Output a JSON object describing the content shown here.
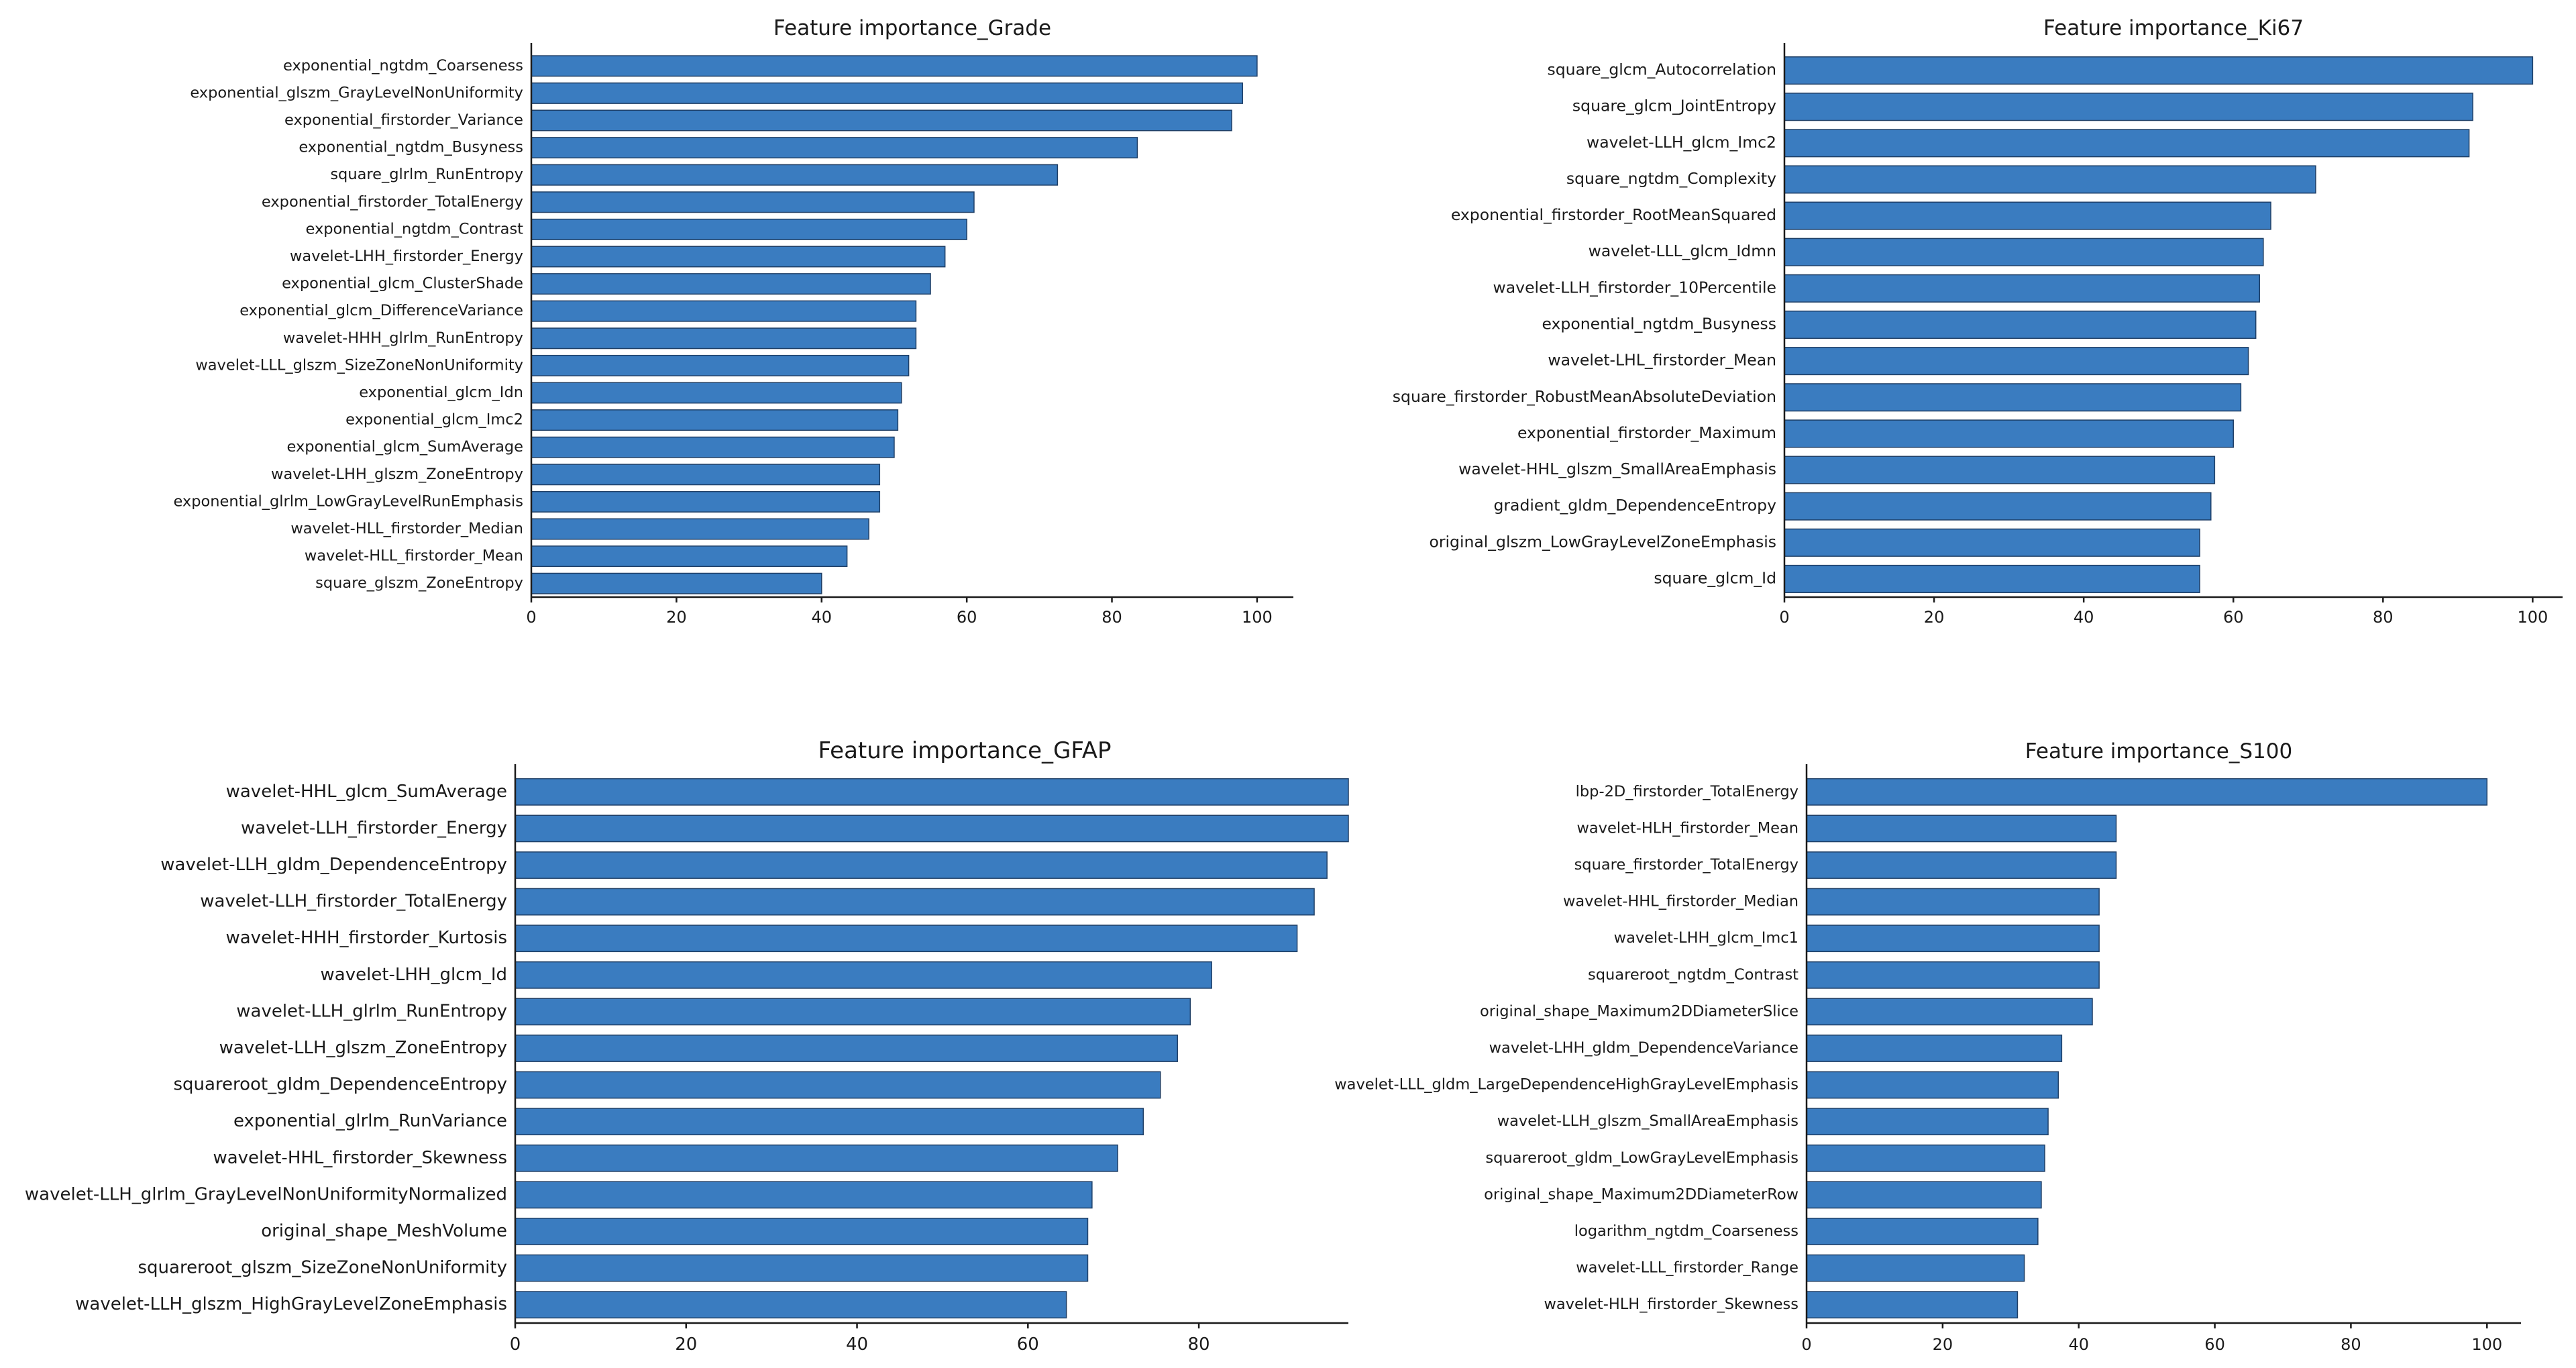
{
  "colors": {
    "bar": "#3a7cc0",
    "bar_edge": "#1f3f66",
    "axis": "#1a1a1a",
    "background": "#ffffff"
  },
  "chart_data": [
    {
      "type": "bar",
      "orientation": "horizontal",
      "title": "Feature importance_Grade",
      "xlim": [
        0,
        105
      ],
      "xticks": [
        0,
        20,
        40,
        60,
        80,
        100
      ],
      "categories": [
        "exponential_ngtdm_Coarseness",
        "exponential_glszm_GrayLevelNonUniformity",
        "exponential_firstorder_Variance",
        "exponential_ngtdm_Busyness",
        "square_glrlm_RunEntropy",
        "exponential_firstorder_TotalEnergy",
        "exponential_ngtdm_Contrast",
        "wavelet-LHH_firstorder_Energy",
        "exponential_glcm_ClusterShade",
        "exponential_glcm_DifferenceVariance",
        "wavelet-HHH_glrlm_RunEntropy",
        "wavelet-LLL_glszm_SizeZoneNonUniformity",
        "exponential_glcm_Idn",
        "exponential_glcm_Imc2",
        "exponential_glcm_SumAverage",
        "wavelet-LHH_glszm_ZoneEntropy",
        "exponential_glrlm_LowGrayLevelRunEmphasis",
        "wavelet-HLL_firstorder_Median",
        "wavelet-HLL_firstorder_Mean",
        "square_glszm_ZoneEntropy"
      ],
      "values": [
        100,
        98,
        96.5,
        83.5,
        72.5,
        61,
        60,
        57,
        55,
        53,
        53,
        52,
        51,
        50.5,
        50,
        48,
        48,
        46.5,
        43.5,
        40
      ]
    },
    {
      "type": "bar",
      "orientation": "horizontal",
      "title": "Feature importance_Ki67",
      "xlim": [
        0,
        104
      ],
      "xticks": [
        0,
        20,
        40,
        60,
        80,
        100
      ],
      "categories": [
        "square_glcm_Autocorrelation",
        "square_glcm_JointEntropy",
        "wavelet-LLH_glcm_Imc2",
        "square_ngtdm_Complexity",
        "exponential_firstorder_RootMeanSquared",
        "wavelet-LLL_glcm_Idmn",
        "wavelet-LLH_firstorder_10Percentile",
        "exponential_ngtdm_Busyness",
        "wavelet-LHL_firstorder_Mean",
        "square_firstorder_RobustMeanAbsoluteDeviation",
        "exponential_firstorder_Maximum",
        "wavelet-HHL_glszm_SmallAreaEmphasis",
        "gradient_gldm_DependenceEntropy",
        "original_glszm_LowGrayLevelZoneEmphasis",
        "square_glcm_Id"
      ],
      "values": [
        100,
        92,
        91.5,
        71,
        65,
        64,
        63.5,
        63,
        62,
        61,
        60,
        57.5,
        57,
        55.5,
        55.5
      ]
    },
    {
      "type": "bar",
      "orientation": "horizontal",
      "title": "Feature importance_GFAP",
      "xlim": [
        0,
        97.5
      ],
      "xticks": [
        0,
        20,
        40,
        60,
        80
      ],
      "categories": [
        "wavelet-HHL_glcm_SumAverage",
        "wavelet-LLH_firstorder_Energy",
        "wavelet-LLH_gldm_DependenceEntropy",
        "wavelet-LLH_firstorder_TotalEnergy",
        "wavelet-HHH_firstorder_Kurtosis",
        "wavelet-LHH_glcm_Id",
        "wavelet-LLH_glrlm_RunEntropy",
        "wavelet-LLH_glszm_ZoneEntropy",
        "squareroot_gldm_DependenceEntropy",
        "exponential_glrlm_RunVariance",
        "wavelet-HHL_firstorder_Skewness",
        "wavelet-LLH_glrlm_GrayLevelNonUniformityNormalized",
        "original_shape_MeshVolume",
        "squareroot_glszm_SizeZoneNonUniformity",
        "wavelet-LLH_glszm_HighGrayLevelZoneEmphasis"
      ],
      "values": [
        97.5,
        97.5,
        95,
        93.5,
        91.5,
        81.5,
        79,
        77.5,
        75.5,
        73.5,
        70.5,
        67.5,
        67,
        67,
        64.5
      ]
    },
    {
      "type": "bar",
      "orientation": "horizontal",
      "title": "Feature importance_S100",
      "xlim": [
        0,
        105
      ],
      "xticks": [
        0,
        20,
        40,
        60,
        80,
        100
      ],
      "categories": [
        "lbp-2D_firstorder_TotalEnergy",
        "wavelet-HLH_firstorder_Mean",
        "square_firstorder_TotalEnergy",
        "wavelet-HHL_firstorder_Median",
        "wavelet-LHH_glcm_Imc1",
        "squareroot_ngtdm_Contrast",
        "original_shape_Maximum2DDiameterSlice",
        "wavelet-LHH_gldm_DependenceVariance",
        "wavelet-LLL_gldm_LargeDependenceHighGrayLevelEmphasis",
        "wavelet-LLH_glszm_SmallAreaEmphasis",
        "squareroot_gldm_LowGrayLevelEmphasis",
        "original_shape_Maximum2DDiameterRow",
        "logarithm_ngtdm_Coarseness",
        "wavelet-LLL_firstorder_Range",
        "wavelet-HLH_firstorder_Skewness"
      ],
      "values": [
        100,
        45.5,
        45.5,
        43,
        43,
        43,
        42,
        37.5,
        37,
        35.5,
        35,
        34.5,
        34,
        32,
        31
      ]
    }
  ]
}
